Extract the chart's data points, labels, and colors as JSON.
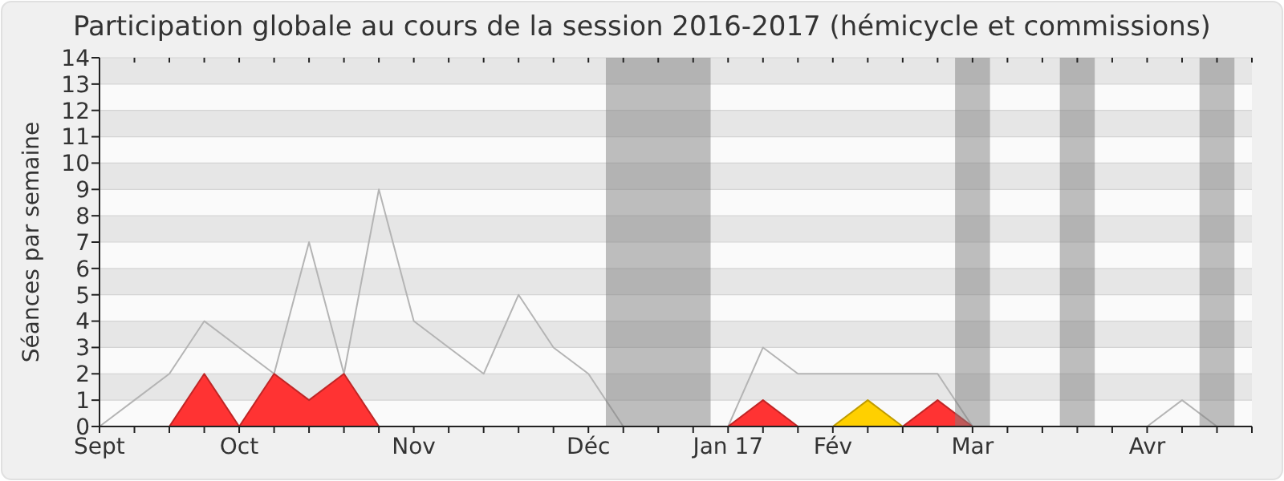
{
  "chart_data": {
    "type": "area",
    "title": "Participation globale au cours de la session 2016-2017 (hémicycle et commissions)",
    "ylabel": "Séances par semaine",
    "x": [
      "2016-09-07",
      "2016-09-14",
      "2016-09-21",
      "2016-09-28",
      "2016-10-05",
      "2016-10-12",
      "2016-10-19",
      "2016-10-26",
      "2016-11-02",
      "2016-11-09",
      "2016-11-16",
      "2016-11-23",
      "2016-11-30",
      "2016-12-07",
      "2016-12-14",
      "2016-12-21",
      "2016-12-28",
      "2017-01-04",
      "2017-01-11",
      "2017-01-18",
      "2017-01-25",
      "2017-02-01",
      "2017-02-08",
      "2017-02-15",
      "2017-02-22",
      "2017-03-01",
      "2017-03-08",
      "2017-03-15",
      "2017-03-22",
      "2017-03-29",
      "2017-04-05",
      "2017-04-12",
      "2017-04-19",
      "2017-04-26"
    ],
    "series": [
      {
        "type": "line",
        "color": "#b4b4b4",
        "values": [
          0,
          1,
          2,
          4,
          3,
          2,
          7,
          2,
          9,
          4,
          3,
          2,
          5,
          3,
          2,
          0,
          0,
          0,
          0,
          3,
          2,
          2,
          2,
          2,
          2,
          0,
          0,
          0,
          0,
          0,
          0,
          1,
          0,
          0
        ]
      },
      {
        "color": "#ffd000",
        "values": [
          0,
          0,
          0,
          0,
          0,
          0,
          0,
          0,
          0,
          0,
          0,
          0,
          0,
          0,
          0,
          0,
          0,
          0,
          0,
          0,
          0,
          0,
          1,
          0,
          0,
          0,
          0,
          0,
          0,
          0,
          0,
          0,
          0,
          0
        ]
      },
      {
        "color": "#ff3333",
        "values": [
          0,
          0,
          0,
          2,
          0,
          2,
          1,
          2,
          0,
          0,
          0,
          0,
          0,
          0,
          0,
          0,
          0,
          0,
          0,
          1,
          0,
          0,
          0,
          0,
          1,
          0,
          0,
          0,
          0,
          0,
          0,
          0,
          0,
          0
        ]
      }
    ],
    "xlim": [
      "2016-09-07",
      "2017-04-26"
    ],
    "xticks": [
      {
        "value": "2016-09-07",
        "label": "Sept"
      },
      {
        "value": "2016-09-14",
        "label": null
      },
      {
        "value": "2016-09-21",
        "label": null
      },
      {
        "value": "2016-09-28",
        "label": null
      },
      {
        "value": "2016-10-05",
        "label": "Oct"
      },
      {
        "value": "2016-10-12",
        "label": null
      },
      {
        "value": "2016-10-19",
        "label": null
      },
      {
        "value": "2016-10-26",
        "label": null
      },
      {
        "value": "2016-11-02",
        "label": null
      },
      {
        "value": "2016-11-09",
        "label": "Nov"
      },
      {
        "value": "2016-11-16",
        "label": null
      },
      {
        "value": "2016-11-23",
        "label": null
      },
      {
        "value": "2016-11-30",
        "label": null
      },
      {
        "value": "2016-12-07",
        "label": null
      },
      {
        "value": "2016-12-14",
        "label": "Déc"
      },
      {
        "value": "2016-12-21",
        "label": null
      },
      {
        "value": "2016-12-28",
        "label": null
      },
      {
        "value": "2017-01-04",
        "label": null
      },
      {
        "value": "2017-01-11",
        "label": "Jan 17"
      },
      {
        "value": "2017-01-18",
        "label": null
      },
      {
        "value": "2017-01-25",
        "label": null
      },
      {
        "value": "2017-02-01",
        "label": "Fév"
      },
      {
        "value": "2017-02-08",
        "label": null
      },
      {
        "value": "2017-02-15",
        "label": null
      },
      {
        "value": "2017-02-22",
        "label": null
      },
      {
        "value": "2017-03-01",
        "label": "Mar"
      },
      {
        "value": "2017-03-08",
        "label": null
      },
      {
        "value": "2017-03-15",
        "label": null
      },
      {
        "value": "2017-03-22",
        "label": null
      },
      {
        "value": "2017-03-29",
        "label": null
      },
      {
        "value": "2017-04-05",
        "label": "Avr"
      },
      {
        "value": "2017-04-12",
        "label": null
      },
      {
        "value": "2017-04-19",
        "label": null
      },
      {
        "value": "2017-04-26",
        "label": null
      }
    ],
    "ylim": [
      0,
      14
    ],
    "yticks": [
      0,
      1,
      2,
      3,
      4,
      5,
      6,
      7,
      8,
      9,
      10,
      11,
      12,
      13,
      14
    ],
    "grid": "y",
    "bands": [
      {
        "axis": "x",
        "from": "2016-12-17T12:00",
        "to": "2017-01-07T12:00",
        "color": "#808080"
      },
      {
        "axis": "x",
        "from": "2017-02-25T12:00",
        "to": "2017-03-04T12:00",
        "color": "#808080"
      },
      {
        "axis": "x",
        "from": "2017-03-18T12:00",
        "to": "2017-03-25T12:00",
        "color": "#808080"
      },
      {
        "axis": "x",
        "from": "2017-04-15T12:00",
        "to": "2017-04-22T12:00",
        "color": "#808080"
      }
    ]
  }
}
